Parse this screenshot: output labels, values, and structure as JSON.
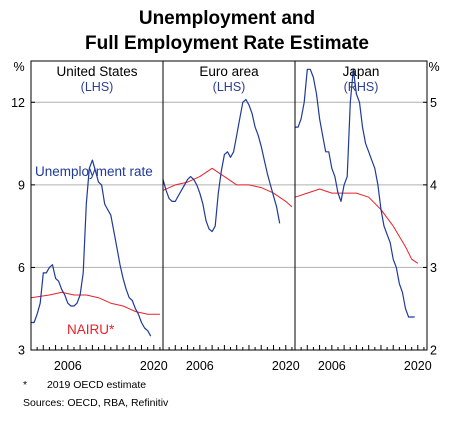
{
  "chart_data": {
    "type": "line",
    "title": "Unemployment and",
    "subtitle": "Full Employment Rate Estimate",
    "left_unit": "%",
    "right_unit": "%",
    "left_axis": {
      "ylim": [
        3,
        13.5
      ],
      "ticks": [
        3,
        6,
        9,
        12
      ]
    },
    "right_axis": {
      "ylim": [
        2,
        5.5
      ],
      "ticks": [
        2,
        3,
        4,
        5
      ]
    },
    "grid": true,
    "colors": {
      "unemployment": "#1f3a9a",
      "nairu": "#e8222a",
      "grid": "#b0b0b0"
    },
    "panels": [
      {
        "name": "United States",
        "axis_label": "(LHS)",
        "axis": "left",
        "xlim": [
          2000,
          2021.5
        ],
        "x_ticks": [
          2006,
          2020
        ],
        "series": [
          {
            "name": "Unemployment rate",
            "x": [
              2000,
              2000.5,
              2001,
              2001.5,
              2002,
              2002.5,
              2003,
              2003.5,
              2004,
              2004.5,
              2005,
              2005.5,
              2006,
              2006.5,
              2007,
              2007.5,
              2008,
              2008.5,
              2009,
              2009.5,
              2010,
              2010.5,
              2011,
              2011.5,
              2012,
              2012.5,
              2013,
              2013.5,
              2014,
              2014.5,
              2015,
              2015.5,
              2016,
              2016.5,
              2017,
              2017.5,
              2018,
              2018.5,
              2019,
              2019.5
            ],
            "y": [
              4.0,
              4.0,
              4.3,
              4.7,
              5.8,
              5.8,
              6.0,
              6.1,
              5.6,
              5.5,
              5.2,
              5.0,
              4.7,
              4.6,
              4.6,
              4.7,
              5.0,
              5.8,
              8.3,
              9.6,
              9.9,
              9.5,
              9.1,
              9.0,
              8.3,
              8.1,
              7.9,
              7.3,
              6.7,
              6.1,
              5.6,
              5.2,
              4.9,
              4.8,
              4.5,
              4.3,
              4.0,
              3.8,
              3.7,
              3.5
            ]
          },
          {
            "name": "NAIRU*",
            "x": [
              2000,
              2003,
              2005,
              2007,
              2009,
              2011,
              2013,
              2015,
              2017,
              2019,
              2021
            ],
            "y": [
              4.9,
              5.0,
              5.1,
              5.0,
              5.0,
              4.9,
              4.7,
              4.6,
              4.4,
              4.3,
              4.3
            ]
          }
        ]
      },
      {
        "name": "Euro area",
        "axis_label": "(LHS)",
        "axis": "left",
        "xlim": [
          2000,
          2021.5
        ],
        "x_ticks": [
          2006,
          2020
        ],
        "series": [
          {
            "name": "",
            "x": [
              2000,
              2000.5,
              2001,
              2001.5,
              2002,
              2002.5,
              2003,
              2003.5,
              2004,
              2004.5,
              2005,
              2005.5,
              2006,
              2006.5,
              2007,
              2007.5,
              2008,
              2008.5,
              2009,
              2009.5,
              2010,
              2010.5,
              2011,
              2011.5,
              2012,
              2012.5,
              2013,
              2013.5,
              2014,
              2014.5,
              2015,
              2015.5,
              2016,
              2016.5,
              2017,
              2017.5,
              2018,
              2018.5,
              2019
            ],
            "y": [
              9.2,
              8.8,
              8.5,
              8.4,
              8.4,
              8.6,
              8.8,
              9.0,
              9.2,
              9.3,
              9.2,
              9.0,
              8.7,
              8.3,
              7.7,
              7.4,
              7.3,
              7.5,
              8.7,
              9.5,
              10.1,
              10.2,
              10.0,
              10.2,
              10.8,
              11.4,
              12.0,
              12.1,
              11.9,
              11.6,
              11.1,
              10.8,
              10.4,
              9.9,
              9.4,
              9.0,
              8.6,
              8.2,
              7.6
            ]
          },
          {
            "name": "",
            "x": [
              2000,
              2002,
              2004,
              2006,
              2008,
              2010,
              2012,
              2014,
              2016,
              2018,
              2020,
              2021
            ],
            "y": [
              8.8,
              9.0,
              9.1,
              9.3,
              9.6,
              9.3,
              9.0,
              9.0,
              8.9,
              8.7,
              8.4,
              8.2
            ]
          }
        ]
      },
      {
        "name": "Japan",
        "axis_label": "(RHS)",
        "axis": "right",
        "xlim": [
          2000,
          2021.5
        ],
        "x_ticks": [
          2006,
          2020
        ],
        "series": [
          {
            "name": "",
            "x": [
              2000,
              2000.5,
              2001,
              2001.5,
              2002,
              2002.5,
              2003,
              2003.5,
              2004,
              2004.5,
              2005,
              2005.5,
              2006,
              2006.5,
              2007,
              2007.5,
              2008,
              2008.5,
              2009,
              2009.5,
              2010,
              2010.5,
              2011,
              2011.5,
              2012,
              2012.5,
              2013,
              2013.5,
              2014,
              2014.5,
              2015,
              2015.5,
              2016,
              2016.5,
              2017,
              2017.5,
              2018,
              2018.5,
              2019,
              2019.5
            ],
            "y": [
              4.7,
              4.7,
              4.8,
              5.0,
              5.4,
              5.4,
              5.3,
              5.1,
              4.8,
              4.6,
              4.4,
              4.4,
              4.2,
              4.1,
              3.9,
              3.8,
              4.0,
              4.1,
              5.0,
              5.4,
              5.1,
              5.0,
              4.7,
              4.5,
              4.4,
              4.3,
              4.2,
              4.0,
              3.7,
              3.5,
              3.4,
              3.3,
              3.1,
              3.0,
              2.8,
              2.7,
              2.5,
              2.4,
              2.4,
              2.4
            ]
          },
          {
            "name": "",
            "x": [
              2000,
              2002,
              2004,
              2006,
              2008,
              2010,
              2012,
              2014,
              2016,
              2018,
              2019,
              2020
            ],
            "y": [
              3.85,
              3.9,
              3.95,
              3.9,
              3.9,
              3.9,
              3.85,
              3.7,
              3.5,
              3.25,
              3.1,
              3.05
            ]
          }
        ]
      }
    ],
    "annotations": [
      {
        "text": "Unemployment rate",
        "panel": "United States"
      },
      {
        "text": "NAIRU*",
        "panel": "United States"
      }
    ]
  },
  "footnotes": {
    "marker": "*",
    "note": "2019 OECD estimate",
    "sources": "Sources:   OECD, RBA, Refinitiv"
  }
}
